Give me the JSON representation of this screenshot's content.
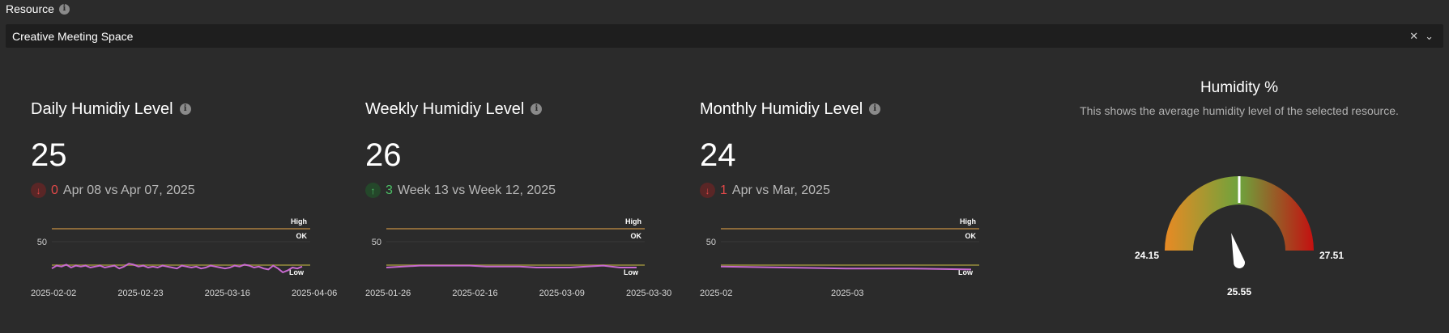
{
  "resource": {
    "label": "Resource",
    "selected": "Creative Meeting Space",
    "clear_icon": "close-icon",
    "dropdown_icon": "chevron-down-icon"
  },
  "cards": [
    {
      "title": "Daily Humidiy Level",
      "value": "25",
      "delta": "0",
      "direction": "down",
      "comparison": "Apr 08 vs Apr 07, 2025",
      "chart_data": {
        "type": "line",
        "x_ticks": [
          "2025-02-02",
          "2025-02-23",
          "2025-03-16",
          "2025-04-06"
        ],
        "y_ticks": [
          50
        ],
        "threshold_labels": {
          "high": "High",
          "ok": "OK",
          "low": "Low"
        },
        "values": [
          24,
          27,
          26,
          28,
          25,
          27,
          26,
          27,
          25,
          26,
          27,
          25,
          26,
          27,
          24,
          26,
          29,
          28,
          26,
          27,
          25,
          26,
          25,
          27,
          26,
          25,
          24,
          27,
          26,
          25,
          26,
          24,
          25,
          27,
          26,
          25,
          24,
          25,
          27,
          26,
          28,
          27,
          25,
          26,
          24,
          23,
          27,
          24,
          20,
          22,
          25,
          24,
          26
        ]
      }
    },
    {
      "title": "Weekly Humidiy Level",
      "value": "26",
      "delta": "3",
      "direction": "up",
      "comparison": "Week 13 vs Week 12, 2025",
      "chart_data": {
        "type": "line",
        "x_ticks": [
          "2025-01-26",
          "2025-02-16",
          "2025-03-09",
          "2025-03-30"
        ],
        "y_ticks": [
          50
        ],
        "threshold_labels": {
          "high": "High",
          "ok": "OK",
          "low": "Low"
        },
        "values": [
          25,
          26,
          27,
          27,
          27,
          27,
          26,
          26,
          26,
          25,
          25,
          25,
          26,
          27,
          25,
          25
        ]
      }
    },
    {
      "title": "Monthly Humidiy Level",
      "value": "24",
      "delta": "1",
      "direction": "down",
      "comparison": "Apr vs Mar, 2025",
      "chart_data": {
        "type": "line",
        "x_ticks": [
          "2025-02",
          "2025-03"
        ],
        "y_ticks": [
          50
        ],
        "threshold_labels": {
          "high": "High",
          "ok": "OK",
          "low": "Low"
        },
        "values": [
          26,
          25,
          24,
          24,
          23
        ]
      }
    }
  ],
  "gauge": {
    "title": "Humidity %",
    "description": "This shows the average humidity level of the selected resource.",
    "min": 24.15,
    "max": 27.51,
    "value": 25.55,
    "min_label": "24.15",
    "max_label": "27.51",
    "value_label": "25.55",
    "colors": {
      "low": "#e88a24",
      "mid": "#6ea33c",
      "high": "#c41010"
    }
  }
}
